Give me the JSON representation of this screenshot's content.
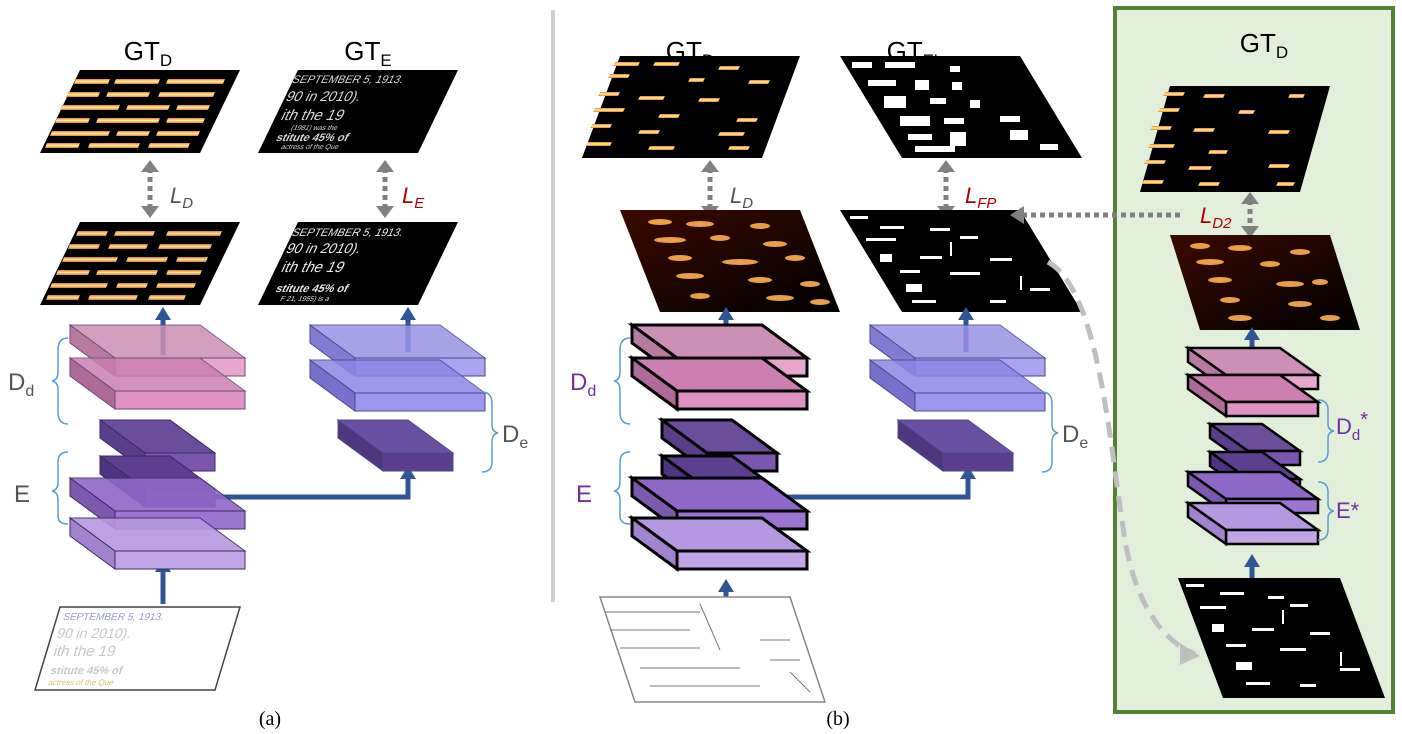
{
  "panel_a": {
    "gt_d": {
      "base": "GT",
      "sub": "D"
    },
    "gt_e": {
      "base": "GT",
      "sub": "E"
    },
    "loss_d": {
      "base": "L",
      "sub": "D"
    },
    "loss_e": {
      "base": "L",
      "sub": "E"
    },
    "dd": {
      "base": "D",
      "sub": "d"
    },
    "e": "E",
    "de": {
      "base": "D",
      "sub": "e"
    },
    "caption": "(a)",
    "ocr_lines": [
      "SEPTEMBER 5, 1913.",
      "90 in 2010).",
      "ith the 19",
      "(1981) was the",
      "stitute 45% of",
      "F 21, 1955) is a",
      "actress of the Que"
    ]
  },
  "panel_b": {
    "gt_d": {
      "base": "GT",
      "sub": "D"
    },
    "gt_e": {
      "base": "GT",
      "sub": "E'"
    },
    "loss_d": {
      "base": "L",
      "sub": "D"
    },
    "loss_fp": {
      "base": "L",
      "sub": "FP"
    },
    "dd": {
      "base": "D",
      "sub": "d"
    },
    "e": "E",
    "de": {
      "base": "D",
      "sub": "e"
    },
    "caption": "(b)"
  },
  "panel_c": {
    "gt_d": {
      "base": "GT",
      "sub": "D"
    },
    "loss_d2": {
      "base": "L",
      "sub": "D2"
    },
    "dd_star": {
      "base": "D",
      "sub": "d",
      "sup": "*"
    },
    "e_star": "E*"
  },
  "colors": {
    "loss_gray": "#555555",
    "loss_red": "#b00000",
    "arrow_blue": "#2f5597",
    "bracket": "#5b9bd5",
    "label_gray": "#555555",
    "label_purple": "#7030a0",
    "panel_fill": "#e2efda",
    "panel_border": "#548235",
    "layer_pink": "#dd99c0",
    "layer_violet": "#8f6ac0",
    "layer_blue": "#8a84e6",
    "layer_dark": "#5b3f8e"
  }
}
